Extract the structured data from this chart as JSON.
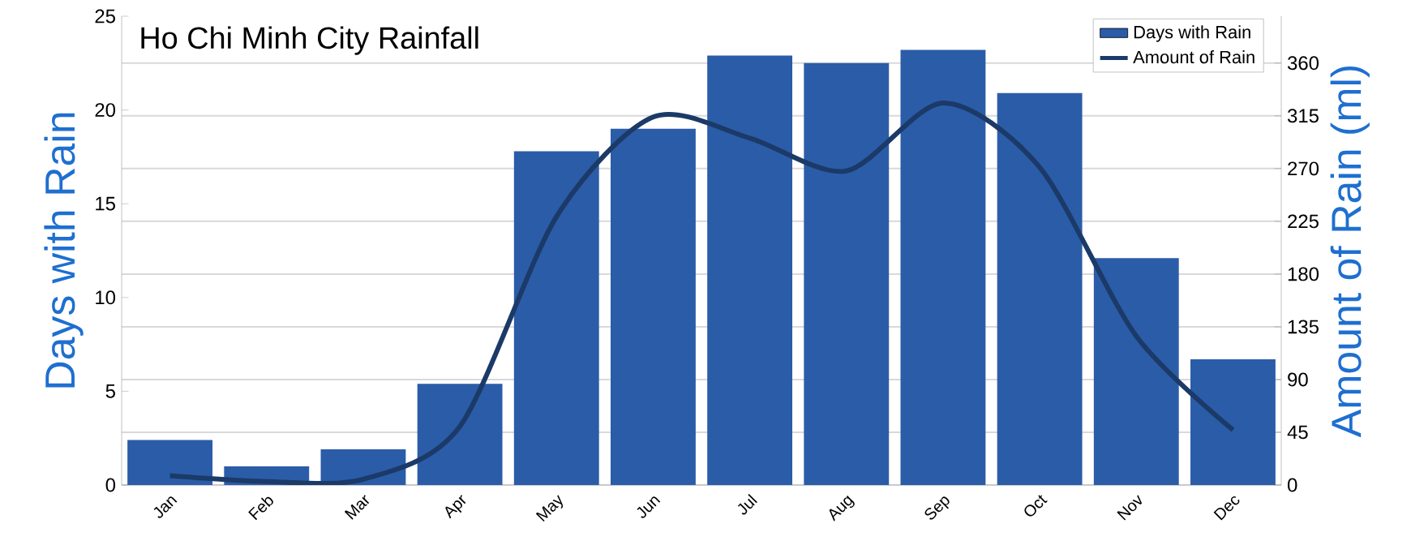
{
  "chart_data": {
    "type": "bar",
    "title": "Ho Chi Minh City Rainfall",
    "ylabel": "Days with Rain",
    "y2label": "Amount of Rain (ml)",
    "categories": [
      "Jan",
      "Feb",
      "Mar",
      "Apr",
      "May",
      "Jun",
      "Jul",
      "Aug",
      "Sep",
      "Oct",
      "Nov",
      "Dec"
    ],
    "series": [
      {
        "name": "Days with Rain",
        "color": "#2b5ca8",
        "values": [
          2.4,
          1.0,
          1.9,
          5.4,
          17.8,
          19.0,
          22.9,
          22.5,
          23.2,
          20.9,
          12.1,
          6.7
        ]
      },
      {
        "name": "Amount of Rain",
        "type": "line",
        "axis": "y2",
        "color": "#1b3a68",
        "values": [
          8,
          3,
          5,
          50,
          229,
          314,
          296,
          268,
          326,
          271,
          127,
          47
        ]
      }
    ],
    "ylim": [
      0,
      25
    ],
    "yticks": [
      0,
      5,
      10,
      15,
      20,
      25
    ],
    "y2lim": [
      0,
      400
    ],
    "y2ticks": [
      0,
      45,
      90,
      135,
      180,
      225,
      270,
      315,
      360
    ],
    "grid": "y2",
    "legend": "top right",
    "marker": "none",
    "line_style": "solid"
  }
}
